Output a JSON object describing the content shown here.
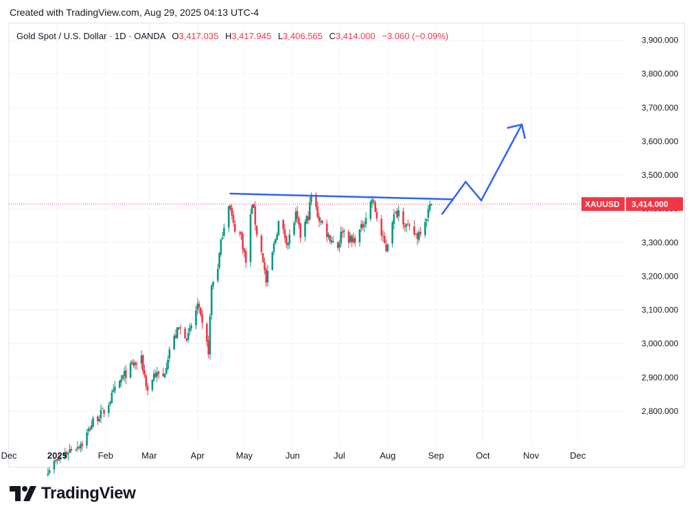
{
  "header": {
    "created": "Created with TradingView.com, Aug 29, 2025 04:13 UTC-4"
  },
  "legend": {
    "symbol": "Gold Spot / U.S. Dollar · 1D · OANDA",
    "o_label": "O",
    "o_value": "3,417.035",
    "h_label": "H",
    "h_value": "3,417.945",
    "l_label": "L",
    "l_value": "3,406.565",
    "c_label": "C",
    "c_value": "3,414.000",
    "change": "−3.060 (−0.09%)"
  },
  "price_tag": {
    "symbol": "XAUUSD",
    "value": "3,414.000"
  },
  "footer": {
    "brand": "TradingView"
  },
  "colors": {
    "up": "#089981",
    "down": "#f23645",
    "drawing": "#2962ff",
    "grid": "#f0f3fa",
    "axis_text": "#131722"
  },
  "chart_data": {
    "type": "candlestick",
    "title": "Gold Spot / U.S. Dollar",
    "interval": "1D",
    "source": "OANDA",
    "ylim": [
      2700,
      3950
    ],
    "y_ticks": [
      2800,
      2900,
      3000,
      3100,
      3200,
      3300,
      3400,
      3500,
      3600,
      3700,
      3800,
      3900
    ],
    "y_tick_labels": [
      "2,800.000",
      "2,900.000",
      "3,000.000",
      "3,100.000",
      "3,200.000",
      "3,300.000",
      "3,400.000",
      "3,500.000",
      "3,600.000",
      "3,700.000",
      "3,800.000",
      "3,900.000"
    ],
    "x_range": [
      "2024-12-01",
      "2025-12-31"
    ],
    "x_ticks": [
      {
        "date": "2024-12-01",
        "label": "Dec",
        "bold": false
      },
      {
        "date": "2025-01-01",
        "label": "2025",
        "bold": true
      },
      {
        "date": "2025-02-01",
        "label": "Feb",
        "bold": false
      },
      {
        "date": "2025-03-01",
        "label": "Mar",
        "bold": false
      },
      {
        "date": "2025-04-01",
        "label": "Apr",
        "bold": false
      },
      {
        "date": "2025-05-01",
        "label": "May",
        "bold": false
      },
      {
        "date": "2025-06-01",
        "label": "Jun",
        "bold": false
      },
      {
        "date": "2025-07-01",
        "label": "Jul",
        "bold": false
      },
      {
        "date": "2025-08-01",
        "label": "Aug",
        "bold": false
      },
      {
        "date": "2025-09-01",
        "label": "Sep",
        "bold": false
      },
      {
        "date": "2025-10-01",
        "label": "Oct",
        "bold": false
      },
      {
        "date": "2025-11-01",
        "label": "Nov",
        "bold": false
      },
      {
        "date": "2025-12-01",
        "label": "Dec",
        "bold": false
      }
    ],
    "last_close": 3414.0,
    "close_path": [
      [
        "2024-12-26",
        2630
      ],
      [
        "2025-01-02",
        2655
      ],
      [
        "2025-01-10",
        2690
      ],
      [
        "2025-01-17",
        2705
      ],
      [
        "2025-01-24",
        2770
      ],
      [
        "2025-01-31",
        2800
      ],
      [
        "2025-02-07",
        2860
      ],
      [
        "2025-02-12",
        2900
      ],
      [
        "2025-02-18",
        2935
      ],
      [
        "2025-02-24",
        2950
      ],
      [
        "2025-02-28",
        2860
      ],
      [
        "2025-03-04",
        2910
      ],
      [
        "2025-03-10",
        2900
      ],
      [
        "2025-03-14",
        2985
      ],
      [
        "2025-03-20",
        3045
      ],
      [
        "2025-03-26",
        3020
      ],
      [
        "2025-04-01",
        3115
      ],
      [
        "2025-04-04",
        3050
      ],
      [
        "2025-04-08",
        2980
      ],
      [
        "2025-04-10",
        3170
      ],
      [
        "2025-04-14",
        3230
      ],
      [
        "2025-04-17",
        3330
      ],
      [
        "2025-04-21",
        3420
      ],
      [
        "2025-04-24",
        3350
      ],
      [
        "2025-04-29",
        3320
      ],
      [
        "2025-05-02",
        3240
      ],
      [
        "2025-05-06",
        3420
      ],
      [
        "2025-05-09",
        3330
      ],
      [
        "2025-05-13",
        3250
      ],
      [
        "2025-05-15",
        3180
      ],
      [
        "2025-05-20",
        3290
      ],
      [
        "2025-05-23",
        3360
      ],
      [
        "2025-05-29",
        3300
      ],
      [
        "2025-06-03",
        3380
      ],
      [
        "2025-06-06",
        3320
      ],
      [
        "2025-06-11",
        3380
      ],
      [
        "2025-06-13",
        3440
      ],
      [
        "2025-06-18",
        3370
      ],
      [
        "2025-06-24",
        3320
      ],
      [
        "2025-06-30",
        3290
      ],
      [
        "2025-07-03",
        3340
      ],
      [
        "2025-07-09",
        3300
      ],
      [
        "2025-07-15",
        3340
      ],
      [
        "2025-07-22",
        3430
      ],
      [
        "2025-07-28",
        3320
      ],
      [
        "2025-07-31",
        3280
      ],
      [
        "2025-08-04",
        3370
      ],
      [
        "2025-08-08",
        3395
      ],
      [
        "2025-08-14",
        3340
      ],
      [
        "2025-08-20",
        3320
      ],
      [
        "2025-08-25",
        3370
      ],
      [
        "2025-08-29",
        3414
      ]
    ],
    "annotations": {
      "resistance_line": [
        [
          "2025-04-22",
          3445
        ],
        [
          "2025-09-12",
          3428
        ]
      ],
      "projection_path": [
        [
          "2025-09-05",
          3385
        ],
        [
          "2025-09-20",
          3480
        ],
        [
          "2025-09-30",
          3425
        ],
        [
          "2025-10-26",
          3650
        ]
      ],
      "arrow_head": [
        [
          "2025-10-17",
          3640
        ],
        [
          "2025-10-26",
          3650
        ],
        [
          "2025-10-28",
          3610
        ]
      ]
    }
  }
}
